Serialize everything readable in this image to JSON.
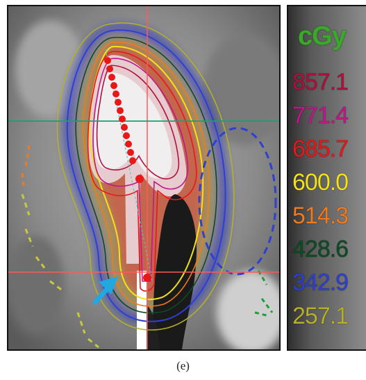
{
  "figure": {
    "caption": "(e)"
  },
  "dose_legend": {
    "unit": "cGy",
    "levels": [
      {
        "value": "857.1",
        "color": "#b0103e"
      },
      {
        "value": "771.4",
        "color": "#c0188a"
      },
      {
        "value": "685.7",
        "color": "#e81818"
      },
      {
        "value": "600.0",
        "color": "#f2e21a"
      },
      {
        "value": "514.3",
        "color": "#f07a1e"
      },
      {
        "value": "428.6",
        "color": "#0e4a24"
      },
      {
        "value": "342.9",
        "color": "#2f3fd0"
      },
      {
        "value": "257.1",
        "color": "#b5b02a"
      }
    ]
  },
  "colors": {
    "crosshair_vertical": "#ff5a5a",
    "crosshair_horizontal_top": "#1aa070",
    "crosshair_horizontal_bottom": "#ff5a5a",
    "dwell_points": "#e81818",
    "arrow": "#22a8e0",
    "applicator": "#ffffff"
  }
}
